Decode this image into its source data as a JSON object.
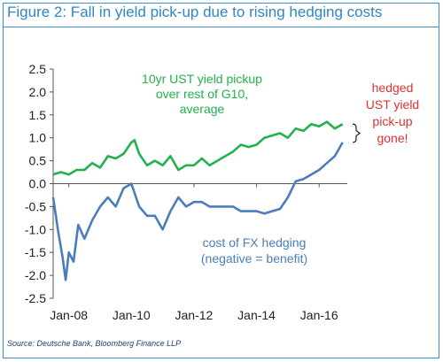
{
  "title": "Figure 2: Fall in yield pick-up due to rising hedging costs",
  "source": "Source: Deutsche Bank, Bloomberg Finance LLP",
  "colors": {
    "frame": "#3b8ec7",
    "green_series": "#22b14c",
    "blue_series": "#4a7ebb",
    "red_annotation": "#e03030"
  },
  "chart_data": {
    "type": "line",
    "title": "Figure 2: Fall in yield pick-up due to rising hedging costs",
    "xlabel": "",
    "ylabel": "",
    "ylim": [
      -2.5,
      2.5
    ],
    "xlim": [
      2007.5,
      2016.9
    ],
    "y_ticks": [
      "2.5",
      "2.0",
      "1.5",
      "1.0",
      "0.5",
      "0.0",
      "-0.5",
      "-1.0",
      "-1.5",
      "-2.0",
      "-2.5"
    ],
    "x_ticks": [
      {
        "label": "Jan-08",
        "x": 2008.0
      },
      {
        "label": "Jan-10",
        "x": 2010.0
      },
      {
        "label": "Jan-12",
        "x": 2012.0
      },
      {
        "label": "Jan-14",
        "x": 2014.0
      },
      {
        "label": "Jan-16",
        "x": 2016.0
      }
    ],
    "grid": false,
    "series": [
      {
        "name": "10yr UST yield pickup over rest of G10, average",
        "x": [
          2007.5,
          2007.75,
          2008.0,
          2008.25,
          2008.5,
          2008.75,
          2009.0,
          2009.25,
          2009.5,
          2009.75,
          2010.0,
          2010.1,
          2010.25,
          2010.5,
          2010.75,
          2011.0,
          2011.25,
          2011.5,
          2011.75,
          2012.0,
          2012.25,
          2012.5,
          2012.75,
          2013.0,
          2013.25,
          2013.5,
          2013.75,
          2014.0,
          2014.25,
          2014.5,
          2014.75,
          2015.0,
          2015.25,
          2015.5,
          2015.75,
          2016.0,
          2016.25,
          2016.5,
          2016.75
        ],
        "y": [
          0.2,
          0.25,
          0.2,
          0.3,
          0.3,
          0.45,
          0.35,
          0.6,
          0.55,
          0.65,
          0.9,
          0.95,
          0.65,
          0.4,
          0.5,
          0.4,
          0.6,
          0.3,
          0.4,
          0.4,
          0.55,
          0.4,
          0.5,
          0.6,
          0.7,
          0.85,
          0.8,
          0.85,
          1.0,
          1.05,
          1.1,
          1.0,
          1.2,
          1.15,
          1.3,
          1.25,
          1.35,
          1.2,
          1.3
        ]
      },
      {
        "name": "cost of FX hedging (negative = benefit)",
        "x": [
          2007.5,
          2007.65,
          2007.8,
          2007.9,
          2008.0,
          2008.15,
          2008.3,
          2008.5,
          2008.75,
          2009.0,
          2009.25,
          2009.5,
          2009.75,
          2010.0,
          2010.25,
          2010.5,
          2010.75,
          2011.0,
          2011.25,
          2011.5,
          2011.75,
          2012.0,
          2012.25,
          2012.5,
          2012.75,
          2013.0,
          2013.25,
          2013.5,
          2013.75,
          2014.0,
          2014.25,
          2014.5,
          2014.75,
          2015.0,
          2015.25,
          2015.5,
          2015.75,
          2016.0,
          2016.25,
          2016.5,
          2016.75
        ],
        "y": [
          -0.3,
          -1.0,
          -1.6,
          -2.1,
          -1.5,
          -1.7,
          -0.9,
          -1.2,
          -0.8,
          -0.5,
          -0.3,
          -0.5,
          -0.1,
          0.0,
          -0.5,
          -0.7,
          -0.7,
          -1.0,
          -0.6,
          -0.3,
          -0.5,
          -0.4,
          -0.4,
          -0.5,
          -0.5,
          -0.5,
          -0.5,
          -0.6,
          -0.6,
          -0.6,
          -0.65,
          -0.6,
          -0.55,
          -0.3,
          0.05,
          0.1,
          0.2,
          0.3,
          0.45,
          0.6,
          0.9
        ]
      }
    ],
    "annotations": [
      {
        "lines": [
          "10yr UST yield pickup",
          "over rest of G10,",
          "average"
        ],
        "color": "#22b14c"
      },
      {
        "lines": [
          "cost of FX hedging",
          "(negative = benefit)"
        ],
        "color": "#4a7ebb"
      },
      {
        "lines": [
          "hedged",
          "UST yield",
          "pick-up",
          "gone!"
        ],
        "color": "#e03030"
      }
    ]
  }
}
